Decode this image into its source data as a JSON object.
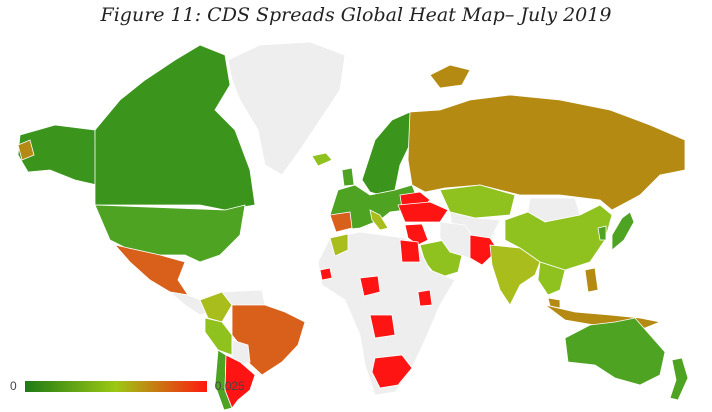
{
  "title": "Figure 11: CDS Spreads Global Heat Map– July 2019",
  "legend": {
    "min": "0",
    "max": "0.025",
    "colors": [
      "#1e7a14",
      "#9cc814",
      "#ff1a10"
    ]
  },
  "colors": {
    "no_data": "#eeeeee",
    "dark_green": "#3b951c",
    "green": "#4fa323",
    "light_green": "#8fc21e",
    "yellow_green": "#a9bd1c",
    "gold": "#b58a12",
    "orange": "#d8601a",
    "red": "#ff1414"
  }
}
